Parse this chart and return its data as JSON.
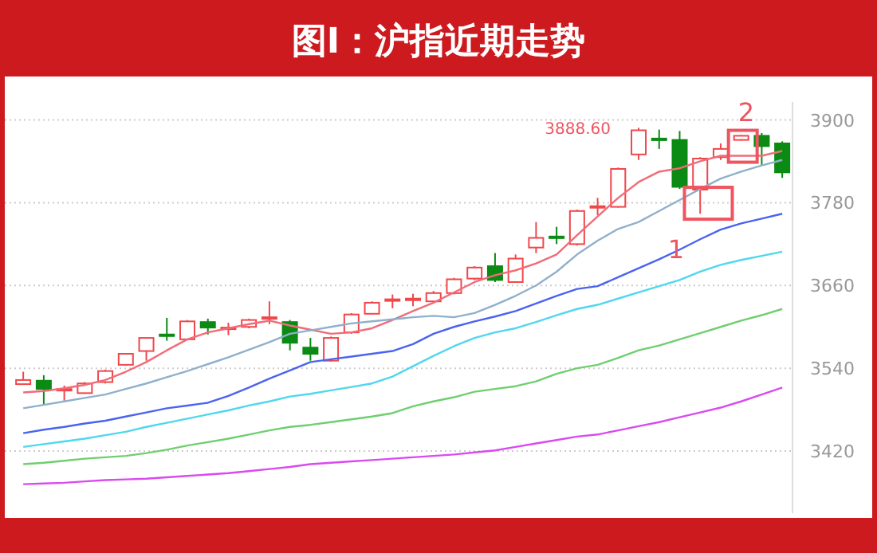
{
  "chart_data": {
    "type": "candlestick",
    "title": "图I：沪指近期走势",
    "categories": [
      null,
      null,
      null,
      null,
      null,
      null,
      null,
      null,
      null,
      null,
      null,
      null,
      null,
      null,
      null,
      null,
      null,
      null,
      null,
      null,
      null,
      null,
      null,
      null,
      null,
      null,
      null,
      null,
      null,
      null,
      null,
      null,
      null,
      null,
      null,
      null,
      null,
      null
    ],
    "ohlc": [
      [
        3517,
        3535,
        3516,
        3523
      ],
      [
        3522,
        3530,
        3487,
        3510
      ],
      [
        3508,
        3515,
        3493,
        3510
      ],
      [
        3504,
        3520,
        3503,
        3518
      ],
      [
        3520,
        3538,
        3518,
        3536
      ],
      [
        3545,
        3562,
        3544,
        3561
      ],
      [
        3565,
        3585,
        3551,
        3584
      ],
      [
        3589,
        3613,
        3580,
        3587
      ],
      [
        3582,
        3610,
        3581,
        3608
      ],
      [
        3607,
        3612,
        3589,
        3599
      ],
      [
        3597,
        3606,
        3588,
        3599
      ],
      [
        3600,
        3612,
        3598,
        3610
      ],
      [
        3612,
        3637,
        3604,
        3614
      ],
      [
        3607,
        3610,
        3566,
        3577
      ],
      [
        3570,
        3584,
        3551,
        3561
      ],
      [
        3551,
        3586,
        3550,
        3584
      ],
      [
        3592,
        3620,
        3590,
        3618
      ],
      [
        3619,
        3637,
        3618,
        3635
      ],
      [
        3638,
        3647,
        3627,
        3640
      ],
      [
        3639,
        3648,
        3630,
        3641
      ],
      [
        3637,
        3652,
        3635,
        3649
      ],
      [
        3649,
        3671,
        3647,
        3669
      ],
      [
        3670,
        3688,
        3668,
        3686
      ],
      [
        3688,
        3707,
        3665,
        3668
      ],
      [
        3665,
        3705,
        3664,
        3699
      ],
      [
        3715,
        3752,
        3707,
        3729
      ],
      [
        3731,
        3745,
        3720,
        3729
      ],
      [
        3720,
        3770,
        3718,
        3768
      ],
      [
        3773,
        3787,
        3762,
        3775
      ],
      [
        3774,
        3831,
        3773,
        3829
      ],
      [
        3850,
        3888.6,
        3842,
        3885
      ],
      [
        3873,
        3886,
        3858,
        3871
      ],
      [
        3871,
        3884,
        3800,
        3803
      ],
      [
        3799,
        3846,
        3764,
        3844
      ],
      [
        3846,
        3866,
        3842,
        3858
      ],
      [
        3871,
        3878,
        3870,
        3877
      ],
      [
        3877,
        3881,
        3834,
        3862
      ],
      [
        3866,
        3869,
        3816,
        3824
      ]
    ],
    "colors": [
      "#f0474b",
      "#0b8a14",
      "#f0474b",
      "#f0474b",
      "#f0474b",
      "#f0474b",
      "#f0474b",
      "#0b8a14",
      "#f0474b",
      "#0b8a14",
      "#f0474b",
      "#f0474b",
      "#f0474b",
      "#0b8a14",
      "#0b8a14",
      "#f0474b",
      "#f0474b",
      "#f0474b",
      "#f0474b",
      "#f0474b",
      "#f0474b",
      "#f0474b",
      "#f0474b",
      "#0b8a14",
      "#f0474b",
      "#f0474b",
      "#0b8a14",
      "#f0474b",
      "#f0474b",
      "#f0474b",
      "#f0474b",
      "#0b8a14",
      "#0b8a14",
      "#f0474b",
      "#f0474b",
      "#f0474b",
      "#0b8a14",
      "#0b8a14"
    ],
    "series": [
      {
        "type": "line",
        "color": "#f06c78",
        "values": [
          3505,
          3507,
          3511,
          3516,
          3523,
          3535,
          3549,
          3566,
          3582,
          3592,
          3598,
          3604,
          3609,
          3602,
          3596,
          3590,
          3592,
          3598,
          3610,
          3623,
          3635,
          3650,
          3665,
          3675,
          3682,
          3692,
          3705,
          3733,
          3760,
          3787,
          3810,
          3825,
          3830,
          3840,
          3848,
          3848,
          3848,
          3855
        ]
      },
      {
        "type": "line",
        "color": "#8fb0cc",
        "values": [
          3482,
          3487,
          3492,
          3497,
          3502,
          3510,
          3518,
          3527,
          3536,
          3546,
          3556,
          3567,
          3578,
          3590,
          3595,
          3600,
          3605,
          3608,
          3611,
          3614,
          3616,
          3614,
          3620,
          3632,
          3645,
          3660,
          3680,
          3705,
          3725,
          3742,
          3752,
          3768,
          3784,
          3800,
          3815,
          3825,
          3834,
          3842
        ]
      },
      {
        "type": "line",
        "color": "#4a63f0",
        "values": [
          3446,
          3451,
          3455,
          3460,
          3464,
          3470,
          3476,
          3482,
          3486,
          3490,
          3500,
          3512,
          3525,
          3537,
          3549,
          3553,
          3557,
          3561,
          3565,
          3575,
          3590,
          3600,
          3608,
          3615,
          3623,
          3634,
          3645,
          3655,
          3659,
          3672,
          3685,
          3698,
          3712,
          3727,
          3741,
          3750,
          3757,
          3764
        ]
      },
      {
        "type": "line",
        "color": "#4fd7ee",
        "values": [
          3426,
          3430,
          3434,
          3438,
          3443,
          3448,
          3455,
          3461,
          3467,
          3473,
          3479,
          3486,
          3492,
          3499,
          3503,
          3508,
          3513,
          3518,
          3528,
          3543,
          3558,
          3572,
          3584,
          3592,
          3598,
          3607,
          3617,
          3626,
          3632,
          3641,
          3650,
          3659,
          3668,
          3680,
          3690,
          3697,
          3703,
          3709
        ]
      },
      {
        "type": "line",
        "color": "#6fcf6f",
        "values": [
          3401,
          3403,
          3406,
          3409,
          3411,
          3413,
          3417,
          3422,
          3428,
          3433,
          3438,
          3444,
          3450,
          3455,
          3458,
          3462,
          3466,
          3470,
          3475,
          3485,
          3492,
          3498,
          3506,
          3510,
          3514,
          3521,
          3532,
          3540,
          3545,
          3555,
          3566,
          3573,
          3582,
          3591,
          3600,
          3609,
          3617,
          3626
        ]
      },
      {
        "type": "line",
        "color": "#d94af0",
        "values": [
          3372,
          3373,
          3374,
          3376,
          3378,
          3379,
          3380,
          3382,
          3384,
          3386,
          3388,
          3391,
          3394,
          3397,
          3401,
          3403,
          3405,
          3407,
          3409,
          3411,
          3413,
          3415,
          3418,
          3421,
          3426,
          3431,
          3436,
          3441,
          3444,
          3450,
          3456,
          3462,
          3469,
          3476,
          3483,
          3492,
          3502,
          3512
        ]
      }
    ],
    "ylim": [
      3330,
      3926
    ],
    "yticks": [
      3420,
      3540,
      3660,
      3780,
      3900
    ],
    "grid": "y",
    "marker": "none",
    "annotations": [
      "3888.60",
      "1",
      "2"
    ]
  }
}
